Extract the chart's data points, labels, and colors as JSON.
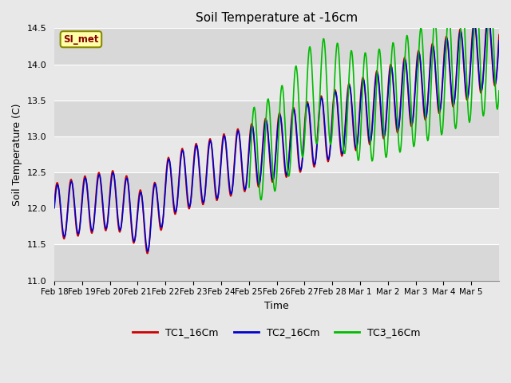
{
  "title": "Soil Temperature at -16cm",
  "xlabel": "Time",
  "ylabel": "Soil Temperature (C)",
  "ylim": [
    11.0,
    14.5
  ],
  "fig_bg_color": "#e8e8e8",
  "plot_bg_color": "#e0e0e0",
  "band_colors": [
    "#d8d8d8",
    "#e8e8e8"
  ],
  "grid_color": "white",
  "annotation_text": "SI_met",
  "annotation_bg": "#ffffaa",
  "annotation_border": "#888800",
  "tc1_color": "#cc0000",
  "tc2_color": "#0000cc",
  "tc3_color": "#00bb00",
  "linewidth": 1.2,
  "x_tick_labels": [
    "Feb 18",
    "Feb 19",
    "Feb 20",
    "Feb 21",
    "Feb 22",
    "Feb 23",
    "Feb 24",
    "Feb 25",
    "Feb 26",
    "Feb 27",
    "Feb 28",
    "Mar 1",
    "Mar 2",
    "Mar 3",
    "Mar 4",
    "Mar 5"
  ],
  "legend_labels": [
    "TC1_16Cm",
    "TC2_16Cm",
    "TC3_16Cm"
  ]
}
